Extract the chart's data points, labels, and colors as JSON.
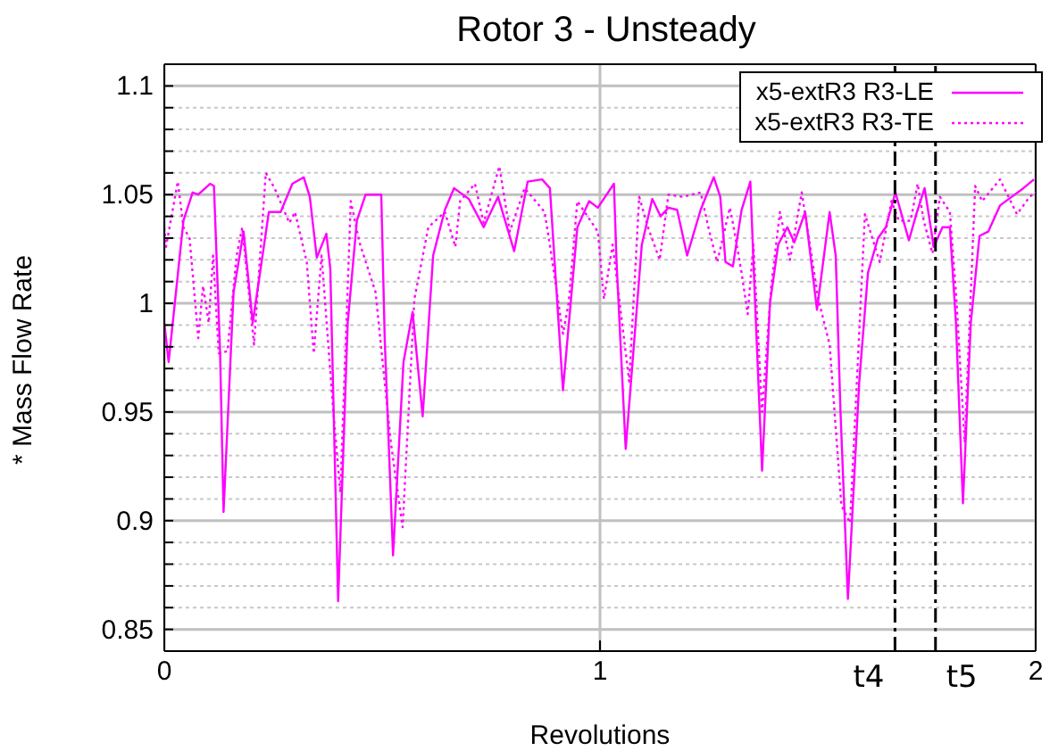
{
  "chart_data": {
    "type": "line",
    "title": "Rotor 3 - Unsteady",
    "xlabel": "Revolutions",
    "ylabel": "* Mass Flow Rate",
    "xlim": [
      0,
      2
    ],
    "xticks": [
      0,
      1,
      2
    ],
    "ylim": [
      0.84,
      1.11
    ],
    "yticks": [
      {
        "value": 0.84,
        "label": null
      },
      {
        "value": 0.85,
        "label": "0.85"
      },
      {
        "value": 0.86,
        "label": null
      },
      {
        "value": 0.87,
        "label": null
      },
      {
        "value": 0.88,
        "label": null
      },
      {
        "value": 0.89,
        "label": null
      },
      {
        "value": 0.9,
        "label": "0.9"
      },
      {
        "value": 0.91,
        "label": null
      },
      {
        "value": 0.92,
        "label": null
      },
      {
        "value": 0.93,
        "label": null
      },
      {
        "value": 0.94,
        "label": null
      },
      {
        "value": 0.95,
        "label": "0.95"
      },
      {
        "value": 0.96,
        "label": null
      },
      {
        "value": 0.97,
        "label": null
      },
      {
        "value": 0.98,
        "label": null
      },
      {
        "value": 0.99,
        "label": null
      },
      {
        "value": 1,
        "label": "1"
      },
      {
        "value": 1.01,
        "label": null
      },
      {
        "value": 1.02,
        "label": null
      },
      {
        "value": 1.03,
        "label": null
      },
      {
        "value": 1.04,
        "label": null
      },
      {
        "value": 1.05,
        "label": "1.05"
      },
      {
        "value": 1.06,
        "label": null
      },
      {
        "value": 1.07,
        "label": null
      },
      {
        "value": 1.08,
        "label": null
      },
      {
        "value": 1.09,
        "label": null
      },
      {
        "value": 1.1,
        "label": "1.1"
      },
      {
        "value": 1.11,
        "label": null
      }
    ],
    "grid": true,
    "legend": "top right",
    "marker": "none",
    "ref_lines": [
      {
        "axis": "x",
        "value": 1.677,
        "label": "t4",
        "color": "#000000",
        "line_style": "dashdot"
      },
      {
        "axis": "x",
        "value": 1.77,
        "label": "t5",
        "color": "#000000",
        "line_style": "dashdot"
      }
    ],
    "series": [
      {
        "name": "x5-extR3 R3-LE",
        "color": "#ff00ff",
        "line_style": "solid",
        "x": [
          0,
          0.01,
          0.044,
          0.065,
          0.078,
          0.105,
          0.114,
          0.128,
          0.136,
          0.159,
          0.182,
          0.203,
          0.24,
          0.267,
          0.294,
          0.32,
          0.334,
          0.35,
          0.372,
          0.381,
          0.399,
          0.421,
          0.442,
          0.462,
          0.498,
          0.506,
          0.525,
          0.549,
          0.57,
          0.593,
          0.617,
          0.644,
          0.665,
          0.699,
          0.733,
          0.766,
          0.803,
          0.834,
          0.867,
          0.885,
          0.915,
          0.948,
          0.975,
          0.995,
          1.032,
          1.038,
          1.059,
          1.096,
          1.12,
          1.139,
          1.157,
          1.177,
          1.2,
          1.231,
          1.261,
          1.276,
          1.288,
          1.305,
          1.325,
          1.345,
          1.355,
          1.372,
          1.39,
          1.409,
          1.43,
          1.446,
          1.471,
          1.498,
          1.527,
          1.541,
          1.552,
          1.569,
          1.595,
          1.615,
          1.638,
          1.656,
          1.678,
          1.692,
          1.709,
          1.726,
          1.745,
          1.766,
          1.786,
          1.803,
          1.817,
          1.833,
          1.851,
          1.871,
          1.891,
          1.918,
          1.945,
          1.972,
          1.996
        ],
        "values": [
          0.991,
          0.973,
          1.038,
          1.051,
          1.05,
          1.055,
          1.054,
          0.978,
          0.904,
          1.005,
          1.033,
          0.991,
          1.042,
          1.042,
          1.055,
          1.058,
          1.049,
          1.021,
          1.032,
          1.016,
          0.863,
          0.991,
          1.038,
          1.05,
          1.05,
          0.983,
          0.884,
          0.973,
          0.996,
          0.948,
          1.022,
          1.043,
          1.053,
          1.048,
          1.035,
          1.049,
          1.024,
          1.056,
          1.057,
          1.053,
          0.96,
          1.035,
          1.047,
          1.044,
          1.055,
          1.019,
          0.933,
          1.027,
          1.048,
          1.04,
          1.044,
          1.043,
          1.022,
          1.043,
          1.058,
          1.049,
          1.019,
          1.017,
          1.043,
          1.056,
          1.005,
          0.923,
          1.0,
          1.027,
          1.035,
          1.028,
          1.042,
          0.997,
          1.042,
          1.022,
          0.95,
          0.864,
          0.964,
          1.014,
          1.03,
          1.035,
          1.051,
          1.041,
          1.029,
          1.041,
          1.053,
          1.026,
          1.035,
          1.035,
          0.991,
          0.908,
          0.991,
          1.031,
          1.033,
          1.045,
          1.049,
          1.053,
          1.057
        ]
      },
      {
        "name": "x5-extR3 R3-TE",
        "color": "#ff00ff",
        "line_style": "dotted",
        "x": [
          0,
          0.004,
          0.031,
          0.044,
          0.058,
          0.078,
          0.089,
          0.102,
          0.112,
          0.125,
          0.145,
          0.166,
          0.179,
          0.206,
          0.233,
          0.253,
          0.287,
          0.3,
          0.327,
          0.343,
          0.361,
          0.388,
          0.404,
          0.428,
          0.448,
          0.485,
          0.496,
          0.52,
          0.547,
          0.574,
          0.606,
          0.644,
          0.668,
          0.679,
          0.713,
          0.733,
          0.769,
          0.793,
          0.827,
          0.873,
          0.887,
          0.915,
          0.928,
          0.948,
          0.995,
          1.009,
          1.029,
          1.067,
          1.09,
          1.11,
          1.137,
          1.157,
          1.19,
          1.231,
          1.251,
          1.269,
          1.298,
          1.305,
          1.325,
          1.339,
          1.352,
          1.372,
          1.393,
          1.413,
          1.436,
          1.463,
          1.501,
          1.527,
          1.554,
          1.574,
          1.608,
          1.642,
          1.669,
          1.686,
          1.713,
          1.729,
          1.743,
          1.763,
          1.78,
          1.803,
          1.817,
          1.837,
          1.861,
          1.877,
          1.918,
          1.957,
          1.986,
          2.0
        ],
        "values": [
          1.035,
          1.026,
          1.056,
          1.035,
          1.03,
          0.984,
          1.008,
          0.991,
          1.022,
          0.977,
          0.978,
          1.022,
          1.035,
          0.981,
          1.06,
          1.053,
          1.037,
          1.042,
          1.019,
          0.977,
          1.022,
          0.95,
          0.913,
          1.047,
          1.028,
          1.005,
          0.983,
          0.936,
          0.897,
          1.002,
          1.035,
          1.042,
          1.026,
          1.047,
          1.055,
          1.037,
          1.063,
          1.033,
          1.053,
          1.042,
          1.024,
          0.986,
          1.0,
          1.047,
          1.033,
          1.002,
          1.027,
          0.964,
          1.049,
          1.035,
          1.02,
          1.05,
          1.049,
          1.051,
          1.033,
          1.019,
          1.044,
          1.037,
          1.014,
          0.995,
          1.027,
          0.95,
          1.008,
          1.042,
          1.02,
          1.051,
          1.002,
          0.981,
          0.907,
          0.899,
          1.041,
          1.019,
          1.047,
          1.038,
          1.038,
          1.055,
          1.038,
          1.023,
          1.049,
          1.042,
          1.005,
          0.936,
          1.054,
          1.047,
          1.057,
          1.041,
          1.049,
          1.051
        ]
      }
    ]
  }
}
